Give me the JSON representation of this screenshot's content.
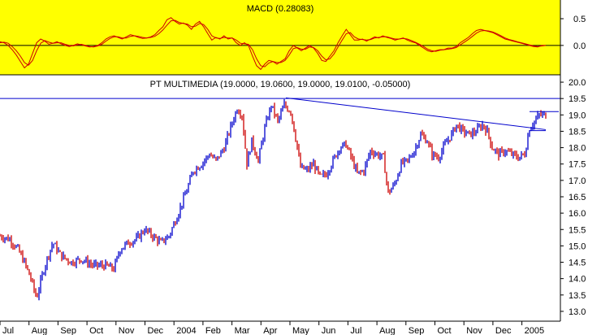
{
  "chart_data": [
    {
      "type": "line",
      "title": "MACD (0.28083)",
      "y_ticks": [
        "0.5",
        "0.0"
      ],
      "y_tick_values": [
        0.5,
        0.0
      ],
      "ylim": [
        -0.55,
        0.85
      ],
      "background": "#ffff00",
      "series": [
        {
          "color": "#cc0000",
          "x": [
            0,
            5,
            10,
            15,
            20,
            25,
            30,
            35,
            40,
            45,
            50,
            55,
            60,
            65,
            70,
            75,
            80,
            85,
            90,
            95,
            100,
            105,
            110,
            115,
            120,
            125,
            130,
            135,
            140,
            145,
            150,
            155,
            160,
            165,
            170,
            175,
            180,
            185,
            190,
            195,
            200,
            205,
            210,
            215,
            220,
            225,
            230,
            235,
            240,
            245,
            250,
            255,
            260,
            265,
            270,
            275,
            280,
            285,
            290,
            295,
            300,
            305,
            310,
            315,
            320,
            325,
            330,
            335,
            340,
            345,
            350,
            355,
            360,
            365,
            370,
            375,
            380,
            385,
            390,
            395,
            400,
            405,
            410,
            415,
            420,
            425,
            430,
            435,
            440,
            445,
            450,
            455,
            460,
            465,
            470,
            475,
            480,
            485,
            490,
            495,
            500,
            505,
            510,
            515,
            520,
            525,
            530,
            535,
            540,
            545,
            550,
            555,
            560,
            565,
            570,
            575,
            580,
            585,
            590,
            595,
            600,
            605,
            610,
            615,
            620,
            625,
            630,
            635,
            640,
            645,
            650,
            655,
            660,
            665,
            670
          ],
          "y": [
            0.07,
            0.05,
            0.0,
            -0.08,
            -0.18,
            -0.3,
            -0.42,
            -0.35,
            -0.15,
            0.05,
            0.12,
            0.08,
            0.02,
            0.04,
            0.07,
            0.03,
            0.0,
            -0.02,
            0.0,
            0.03,
            0.01,
            -0.01,
            -0.03,
            -0.02,
            0.0,
            0.05,
            0.12,
            0.16,
            0.18,
            0.15,
            0.12,
            0.16,
            0.2,
            0.18,
            0.15,
            0.13,
            0.14,
            0.16,
            0.2,
            0.28,
            0.35,
            0.48,
            0.52,
            0.45,
            0.4,
            0.42,
            0.38,
            0.3,
            0.4,
            0.45,
            0.35,
            0.22,
            0.1,
            0.15,
            0.12,
            0.18,
            0.12,
            0.14,
            0.05,
            0.0,
            0.05,
            0.0,
            -0.2,
            -0.38,
            -0.45,
            -0.35,
            -0.28,
            -0.3,
            -0.35,
            -0.3,
            -0.25,
            -0.1,
            0.0,
            -0.05,
            -0.1,
            -0.05,
            0.0,
            -0.05,
            -0.15,
            -0.28,
            -0.3,
            -0.2,
            -0.1,
            0.05,
            0.18,
            0.3,
            0.2,
            0.1,
            0.1,
            0.12,
            0.08,
            0.12,
            0.16,
            0.14,
            0.18,
            0.15,
            0.13,
            0.1,
            0.12,
            0.14,
            0.1,
            0.07,
            0.05,
            0.0,
            -0.05,
            -0.1,
            -0.12,
            -0.1,
            -0.08,
            -0.08,
            -0.05,
            -0.05,
            -0.02,
            0.05,
            0.1,
            0.15,
            0.22,
            0.28,
            0.3,
            0.28,
            0.26,
            0.24,
            0.2,
            0.16,
            0.12,
            0.1,
            0.08,
            0.06,
            0.04,
            0.02,
            0.0,
            -0.02,
            -0.03,
            0.0,
            0.0
          ]
        },
        {
          "color": "#cc0000",
          "x": [
            0,
            5,
            10,
            15,
            20,
            25,
            30,
            35,
            40,
            45,
            50,
            55,
            60,
            65,
            70,
            75,
            80,
            85,
            90,
            95,
            100,
            105,
            110,
            115,
            120,
            125,
            130,
            135,
            140,
            145,
            150,
            155,
            160,
            165,
            170,
            175,
            180,
            185,
            190,
            195,
            200,
            205,
            210,
            215,
            220,
            225,
            230,
            235,
            240,
            245,
            250,
            255,
            260,
            265,
            270,
            275,
            280,
            285,
            290,
            295,
            300,
            305,
            310,
            315,
            320,
            325,
            330,
            335,
            340,
            345,
            350,
            355,
            360,
            365,
            370,
            375,
            380,
            385,
            390,
            395,
            400,
            405,
            410,
            415,
            420,
            425,
            430,
            435,
            440,
            445,
            450,
            455,
            460,
            465,
            470,
            475,
            480,
            485,
            490,
            495,
            500,
            505,
            510,
            515,
            520,
            525,
            530,
            535,
            540,
            545,
            550,
            555,
            560,
            565,
            570,
            575,
            580,
            585,
            590,
            595,
            600,
            605,
            610,
            615,
            620,
            625,
            630,
            635,
            640,
            645,
            650,
            655,
            660,
            665,
            670
          ],
          "y": [
            0.05,
            0.06,
            0.04,
            -0.02,
            -0.1,
            -0.2,
            -0.32,
            -0.37,
            -0.28,
            -0.1,
            0.04,
            0.09,
            0.06,
            0.04,
            0.05,
            0.05,
            0.02,
            0.0,
            -0.01,
            0.01,
            0.02,
            0.0,
            -0.02,
            -0.03,
            -0.01,
            0.02,
            0.08,
            0.13,
            0.16,
            0.16,
            0.14,
            0.14,
            0.17,
            0.18,
            0.17,
            0.15,
            0.14,
            0.15,
            0.17,
            0.22,
            0.29,
            0.38,
            0.46,
            0.47,
            0.43,
            0.41,
            0.4,
            0.35,
            0.36,
            0.41,
            0.39,
            0.3,
            0.18,
            0.14,
            0.13,
            0.15,
            0.14,
            0.14,
            0.1,
            0.04,
            0.03,
            0.02,
            -0.08,
            -0.25,
            -0.38,
            -0.4,
            -0.33,
            -0.3,
            -0.32,
            -0.32,
            -0.28,
            -0.18,
            -0.06,
            -0.04,
            -0.07,
            -0.07,
            -0.03,
            -0.04,
            -0.1,
            -0.2,
            -0.27,
            -0.25,
            -0.16,
            -0.03,
            0.1,
            0.22,
            0.24,
            0.16,
            0.12,
            0.11,
            0.1,
            0.11,
            0.14,
            0.15,
            0.16,
            0.16,
            0.14,
            0.12,
            0.12,
            0.13,
            0.12,
            0.09,
            0.06,
            0.02,
            -0.02,
            -0.07,
            -0.1,
            -0.11,
            -0.09,
            -0.08,
            -0.07,
            -0.06,
            -0.04,
            0.01,
            0.06,
            0.11,
            0.17,
            0.23,
            0.27,
            0.28,
            0.27,
            0.25,
            0.22,
            0.18,
            0.14,
            0.11,
            0.09,
            0.07,
            0.05,
            0.03,
            0.01,
            -0.01,
            -0.02,
            -0.01,
            0.0
          ]
        }
      ]
    },
    {
      "type": "candlestick",
      "title": "PT MULTIMEDIA (19.0000, 19.0600, 19.0000, 19.0100, -0.05000)",
      "ylim": [
        12.7,
        20.2
      ],
      "y_ticks": [
        "20.0",
        "19.5",
        "19.0",
        "18.5",
        "18.0",
        "17.5",
        "17.0",
        "16.5",
        "16.0",
        "15.5",
        "15.0",
        "14.5",
        "14.0",
        "13.5",
        "13.0"
      ],
      "y_tick_values": [
        20.0,
        19.5,
        19.0,
        18.5,
        18.0,
        17.5,
        17.0,
        16.5,
        16.0,
        15.5,
        15.0,
        14.5,
        14.0,
        13.5,
        13.0
      ],
      "x_ticks": [
        "Jul",
        "Aug",
        "Sep",
        "Oct",
        "Nov",
        "Dec",
        "2004",
        "Feb",
        "Mar",
        "Apr",
        "May",
        "Jun",
        "Jul",
        "Aug",
        "Sep",
        "Oct",
        "Nov",
        "Dec",
        "2005"
      ],
      "x_tick_positions": [
        0,
        35.7,
        71.4,
        107.1,
        142.8,
        178.5,
        214.2,
        249.9,
        285.6,
        321.3,
        357,
        392.7,
        428.4,
        464.1,
        499.8,
        535.5,
        571.2,
        606.9,
        642.6
      ],
      "x_range": [
        -10,
        690
      ],
      "up_color": "#0000cc",
      "down_color": "#cc0000",
      "price_path": [
        [
          0,
          15.3
        ],
        [
          12,
          15.2
        ],
        [
          22,
          14.9
        ],
        [
          30,
          14.5
        ],
        [
          38,
          14.0
        ],
        [
          45,
          13.4
        ],
        [
          52,
          14.1
        ],
        [
          58,
          14.6
        ],
        [
          65,
          15.1
        ],
        [
          75,
          14.7
        ],
        [
          88,
          14.5
        ],
        [
          100,
          14.6
        ],
        [
          115,
          14.4
        ],
        [
          130,
          14.4
        ],
        [
          140,
          14.3
        ],
        [
          148,
          14.9
        ],
        [
          158,
          15.1
        ],
        [
          168,
          15.2
        ],
        [
          178,
          15.5
        ],
        [
          188,
          15.3
        ],
        [
          198,
          15.1
        ],
        [
          208,
          15.3
        ],
        [
          218,
          15.9
        ],
        [
          230,
          16.7
        ],
        [
          238,
          17.3
        ],
        [
          248,
          17.5
        ],
        [
          258,
          17.8
        ],
        [
          266,
          17.6
        ],
        [
          276,
          18.0
        ],
        [
          285,
          18.7
        ],
        [
          292,
          19.2
        ],
        [
          298,
          19.0
        ],
        [
          304,
          17.5
        ],
        [
          310,
          18.2
        ],
        [
          318,
          17.6
        ],
        [
          326,
          18.6
        ],
        [
          334,
          19.3
        ],
        [
          342,
          18.8
        ],
        [
          350,
          19.3
        ],
        [
          358,
          19.1
        ],
        [
          364,
          18.3
        ],
        [
          370,
          17.4
        ],
        [
          378,
          17.3
        ],
        [
          386,
          17.5
        ],
        [
          394,
          17.1
        ],
        [
          402,
          17.2
        ],
        [
          410,
          17.6
        ],
        [
          418,
          18.0
        ],
        [
          426,
          18.1
        ],
        [
          434,
          17.6
        ],
        [
          440,
          17.2
        ],
        [
          448,
          17.3
        ],
        [
          456,
          17.9
        ],
        [
          464,
          17.8
        ],
        [
          472,
          17.7
        ],
        [
          478,
          16.6
        ],
        [
          486,
          16.9
        ],
        [
          494,
          17.5
        ],
        [
          502,
          17.6
        ],
        [
          510,
          17.9
        ],
        [
          518,
          18.4
        ],
        [
          526,
          18.2
        ],
        [
          532,
          17.8
        ],
        [
          540,
          17.7
        ],
        [
          548,
          18.1
        ],
        [
          556,
          18.4
        ],
        [
          562,
          18.7
        ],
        [
          570,
          18.5
        ],
        [
          578,
          18.4
        ],
        [
          586,
          18.5
        ],
        [
          594,
          18.7
        ],
        [
          600,
          18.5
        ],
        [
          606,
          18.0
        ],
        [
          614,
          17.8
        ],
        [
          622,
          17.9
        ],
        [
          630,
          17.8
        ],
        [
          638,
          17.7
        ],
        [
          646,
          17.8
        ],
        [
          652,
          18.6
        ],
        [
          658,
          18.8
        ],
        [
          664,
          19.0
        ],
        [
          672,
          19.0
        ]
      ],
      "resistance_line": {
        "y": 19.5
      },
      "trend_line": {
        "x": [
          352,
          672
        ],
        "y": [
          19.52,
          18.55
        ]
      },
      "channel_lines": [
        {
          "x": [
            652,
            688
          ],
          "y": [
            19.1,
            19.1
          ]
        },
        {
          "x": [
            652,
            672
          ],
          "y": [
            18.52,
            18.52
          ]
        }
      ]
    }
  ]
}
